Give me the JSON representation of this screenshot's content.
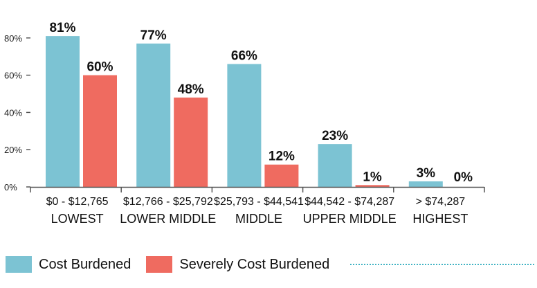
{
  "colors": {
    "cost_burdened": "#7cc3d3",
    "severely_cost_burdened": "#ef6b60",
    "axis": "#555555",
    "dots": "#41b3c4"
  },
  "legend": {
    "cost_burdened": "Cost Burdened",
    "severely_cost_burdened": "Severely Cost Burdened"
  },
  "chart_data": {
    "type": "bar",
    "categories": [
      "$0 - $12,765 LOWEST",
      "$12,766 - $25,792 LOWER MIDDLE",
      "$25,793 - $44,541 MIDDLE",
      "$44,542 - $74,287 UPPER MIDDLE",
      "> $74,287 HIGHEST"
    ],
    "category_lines": [
      [
        "$0 - $12,765",
        "LOWEST"
      ],
      [
        "$12,766 - $25,792",
        "LOWER MIDDLE"
      ],
      [
        "$25,793 - $44,541",
        "MIDDLE"
      ],
      [
        "$44,542 - $74,287",
        "UPPER MIDDLE"
      ],
      [
        "> $74,287",
        "HIGHEST"
      ]
    ],
    "series": [
      {
        "name": "Cost Burdened",
        "values": [
          81,
          77,
          66,
          23,
          3
        ],
        "labels": [
          "81%",
          "77%",
          "66%",
          "23%",
          "3%"
        ]
      },
      {
        "name": "Severely Cost Burdened",
        "values": [
          60,
          48,
          12,
          1,
          0
        ],
        "labels": [
          "60%",
          "48%",
          "12%",
          "1%",
          "0%"
        ]
      }
    ],
    "yticks": [
      0,
      20,
      40,
      60,
      80
    ],
    "ytick_labels": [
      "0%",
      "20%",
      "40%",
      "60%",
      "80%"
    ],
    "ylim": [
      0,
      85
    ],
    "grid": false,
    "legend_position": "bottom-left"
  }
}
